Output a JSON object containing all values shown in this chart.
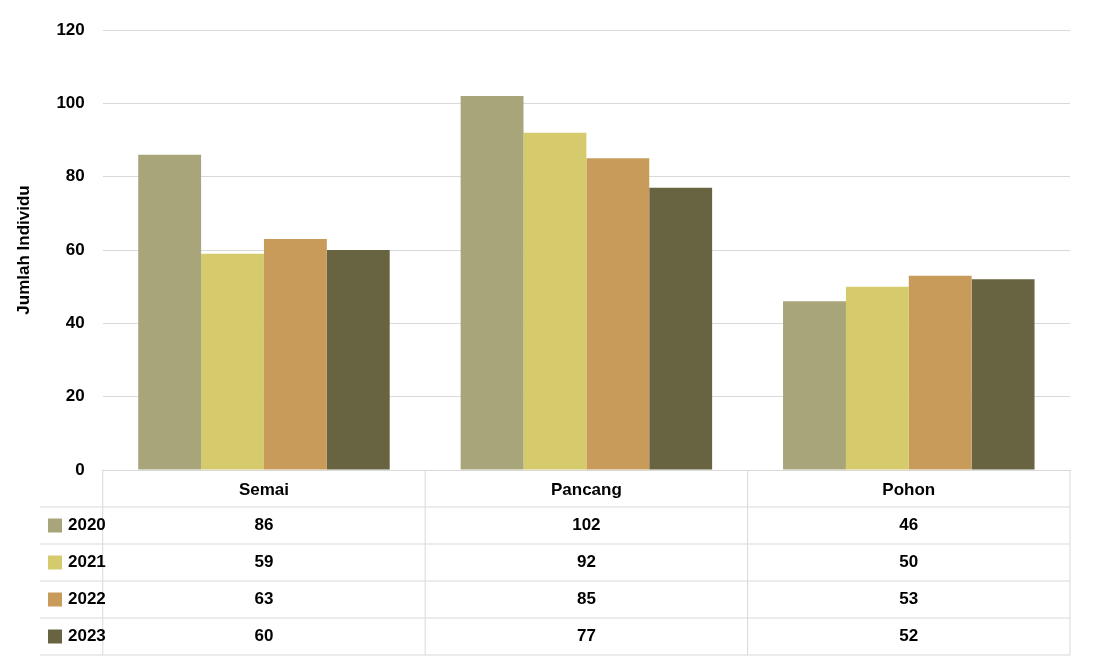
{
  "chart_data": {
    "type": "bar",
    "ylabel": "Jumlah Individu",
    "categories": [
      "Semai",
      "Pancang",
      "Pohon"
    ],
    "series": [
      {
        "name": "2020",
        "color": "#a8a57a",
        "values": [
          86,
          102,
          46
        ]
      },
      {
        "name": "2021",
        "color": "#d5cb6c",
        "values": [
          59,
          92,
          50
        ]
      },
      {
        "name": "2022",
        "color": "#c99b5b",
        "values": [
          63,
          85,
          53
        ]
      },
      {
        "name": "2023",
        "color": "#686442",
        "values": [
          60,
          77,
          52
        ]
      }
    ],
    "ylim": [
      0,
      120
    ],
    "yticks": [
      0,
      20,
      40,
      60,
      80,
      100,
      120
    ],
    "grid": "y",
    "legend": "bottom",
    "data_labels": true
  }
}
